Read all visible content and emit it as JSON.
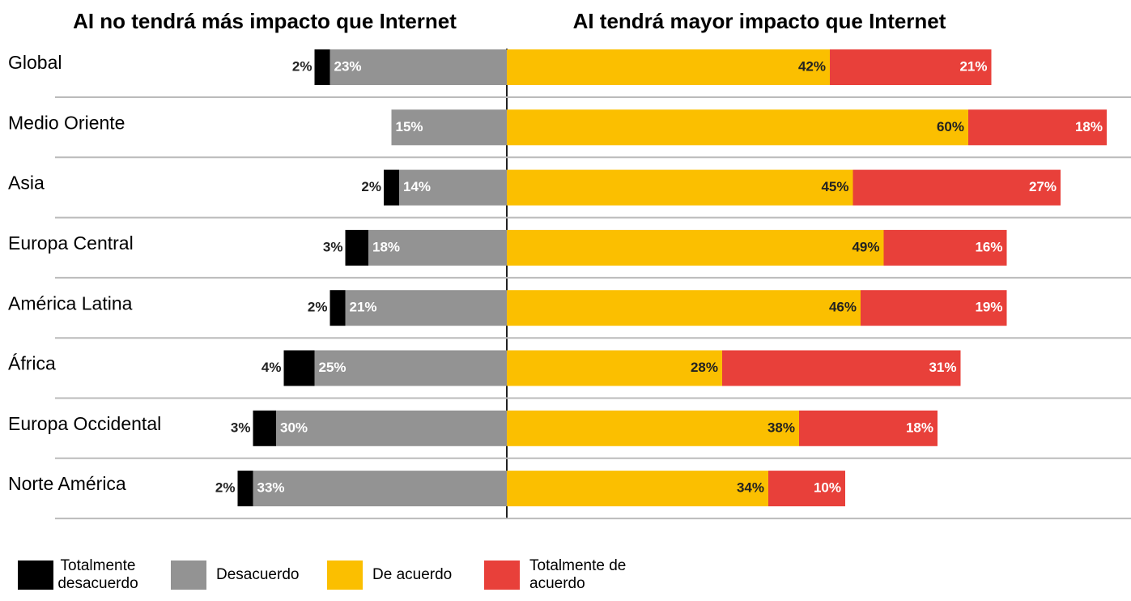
{
  "chart_data": {
    "type": "diverging_bar",
    "titles": [
      "AI no tendrá más impacto que Internet",
      "AI tendrá mayor impacto que Internet"
    ],
    "categories": [
      "Global",
      "Medio Oriente",
      "Asia",
      "Europa Central",
      "América Latina",
      "África",
      "Europa Occidental",
      "Norte América"
    ],
    "series": [
      {
        "name": "Totalmente desacuerdo",
        "color": "#000000",
        "values": [
          2,
          null,
          2,
          3,
          2,
          4,
          3,
          2
        ],
        "value_labels": [
          "2%",
          null,
          "2%",
          "3%",
          "2%",
          "4%",
          "3%",
          "2%"
        ]
      },
      {
        "name": "Desacuerdo",
        "color": "#939393",
        "values": [
          23,
          15,
          14,
          18,
          21,
          25,
          30,
          33
        ],
        "value_labels": [
          "23%",
          "15%",
          "14%",
          "18%",
          "21%",
          "25%",
          "30%",
          "33%"
        ]
      },
      {
        "name": "De acuerdo",
        "color": "#fbbf00",
        "values": [
          42,
          60,
          45,
          49,
          46,
          28,
          38,
          34
        ],
        "value_labels": [
          "42%",
          "60%",
          "45%",
          "49%",
          "46%",
          "28%",
          "38%",
          "34%"
        ]
      },
      {
        "name": "Totalmente de acuerdo",
        "color": "#e8403a",
        "values": [
          21,
          18,
          27,
          16,
          19,
          31,
          18,
          10
        ],
        "value_labels": [
          "21%",
          "18%",
          "27%",
          "16%",
          "19%",
          "31%",
          "18%",
          "10%"
        ]
      }
    ]
  }
}
